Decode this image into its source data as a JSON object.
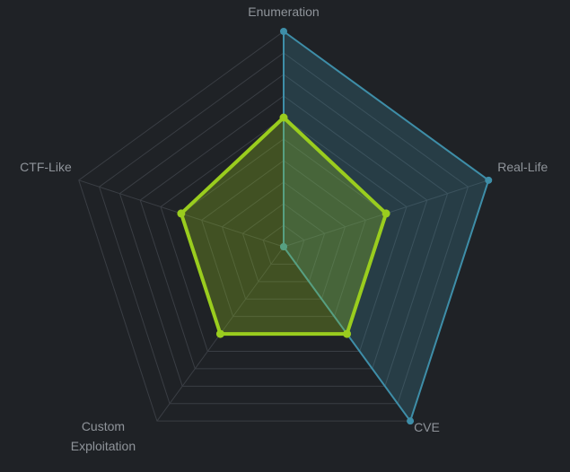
{
  "chart_data": {
    "type": "radar",
    "categories": [
      "Enumeration",
      "Real-Life",
      "CVE",
      "Custom Exploitation",
      "CTF-Like"
    ],
    "label_lines": [
      [
        "Enumeration"
      ],
      [
        "Real-Life"
      ],
      [
        "CVE"
      ],
      [
        "Custom",
        "Exploitation"
      ],
      [
        "CTF-Like"
      ]
    ],
    "range": [
      0,
      10
    ],
    "grid_levels": 10,
    "grid": true,
    "series": [
      {
        "values": [
          10,
          10,
          10,
          0,
          0
        ],
        "color": "#3e8ea8",
        "fill": "rgba(62,142,168,0.25)"
      },
      {
        "values": [
          6,
          5,
          5,
          5,
          5
        ],
        "color": "#9acd1e",
        "fill": "rgba(154,205,30,0.28)"
      }
    ]
  }
}
